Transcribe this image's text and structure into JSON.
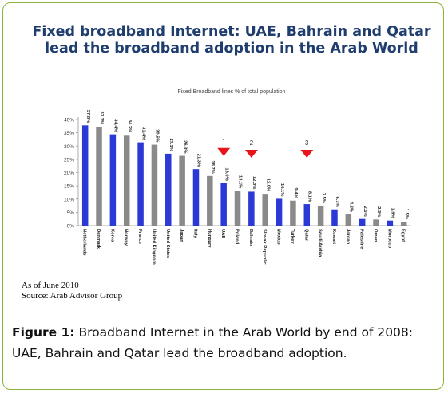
{
  "chart_data": {
    "type": "bar",
    "title": "Fixed broadband Internet: UAE, Bahrain and Qatar lead the broadband adoption in the Arab World",
    "subtitle": "Fixed Broadband lines % of total population",
    "categories": [
      "Netherlands",
      "Denmark",
      "Korea",
      "Norway",
      "France",
      "United Kingdom",
      "United States",
      "Japan",
      "Italy",
      "Hungary",
      "UAE",
      "Poland",
      "Bahrain",
      "Slovak Republic",
      "Mexico",
      "Turkey",
      "Qatar",
      "Saudi Arabia",
      "Kuwait",
      "Jordan",
      "Palestine",
      "Oman",
      "Morocco",
      "Egypt"
    ],
    "values": [
      37.8,
      37.3,
      34.4,
      34.2,
      31.4,
      30.5,
      27.1,
      26.3,
      21.3,
      18.7,
      16.0,
      13.1,
      12.8,
      12.0,
      10.1,
      9.4,
      8.1,
      7.5,
      6.1,
      4.2,
      2.5,
      2.3,
      1.9,
      1.5
    ],
    "value_labels": [
      "37.8%",
      "37.3%",
      "34.4%",
      "34.2%",
      "31.4%",
      "30.5%",
      "27.1%",
      "26.3%",
      "21.3%",
      "18.7%",
      "16.0%",
      "13.1%",
      "12.8%",
      "12.0%",
      "10.1%",
      "9.4%",
      "8.1%",
      "7.5%",
      "6.1%",
      "4.2%",
      "2.5%",
      "2.3%",
      "1.9%",
      "1.5%"
    ],
    "bar_colors": [
      "blue",
      "gray",
      "blue",
      "gray",
      "blue",
      "gray",
      "blue",
      "gray",
      "blue",
      "gray",
      "blue",
      "gray",
      "blue",
      "gray",
      "blue",
      "gray",
      "blue",
      "gray",
      "blue",
      "gray",
      "blue",
      "gray",
      "blue",
      "gray"
    ],
    "colors": {
      "blue": "#2b39d6",
      "gray": "#8a8a8a",
      "arrow": "#e8141c",
      "title": "#1f3d6e"
    },
    "ylim": [
      0,
      40
    ],
    "yticks": [
      "0%",
      "5%",
      "10%",
      "15%",
      "20%",
      "25%",
      "30%",
      "35%",
      "40%"
    ],
    "highlights": [
      {
        "label": "1",
        "category": "UAE"
      },
      {
        "label": "2",
        "category": "Bahrain"
      },
      {
        "label": "3",
        "category": "Qatar"
      }
    ],
    "grid": false
  },
  "notes": {
    "line1": "As of June 2010",
    "line2": "Source: Arab Advisor Group"
  },
  "caption": {
    "label": "Figure 1:",
    "text": " Broadband Internet in the Arab World by end of 2008: UAE, Bahrain and Qatar lead the broadband adoption."
  }
}
